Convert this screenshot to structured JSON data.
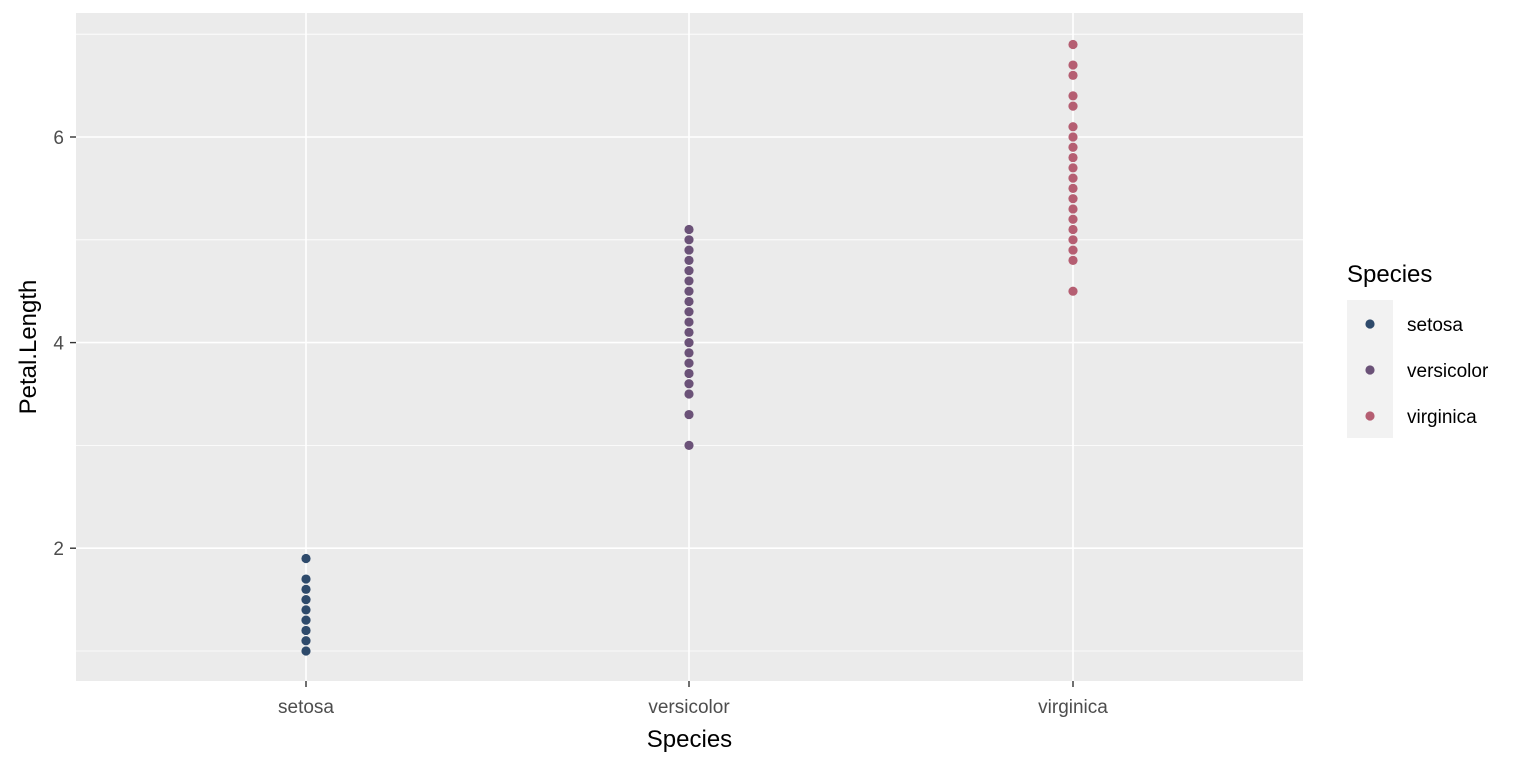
{
  "chart_data": {
    "type": "scatter",
    "title": "",
    "xlabel": "Species",
    "ylabel": "Petal.Length",
    "categories": [
      "setosa",
      "versicolor",
      "virginica"
    ],
    "ylim": [
      0.7,
      7.2
    ],
    "y_ticks": [
      2,
      4,
      6
    ],
    "y_tick_labels": [
      "2",
      "4",
      "6"
    ],
    "grid": true,
    "background": "#ebebeb",
    "legend": {
      "title": "Species",
      "position": "right"
    },
    "series": [
      {
        "name": "setosa",
        "color": "#2e4a6b",
        "x": "setosa",
        "values": [
          1.0,
          1.1,
          1.2,
          1.3,
          1.4,
          1.5,
          1.6,
          1.7,
          1.9
        ]
      },
      {
        "name": "versicolor",
        "color": "#6b5278",
        "x": "versicolor",
        "values": [
          3.0,
          3.3,
          3.5,
          3.6,
          3.7,
          3.8,
          3.9,
          4.0,
          4.1,
          4.2,
          4.3,
          4.4,
          4.5,
          4.6,
          4.7,
          4.8,
          4.9,
          5.0,
          5.1
        ]
      },
      {
        "name": "virginica",
        "color": "#b55e72",
        "x": "virginica",
        "values": [
          4.5,
          4.8,
          4.9,
          5.0,
          5.1,
          5.2,
          5.3,
          5.4,
          5.5,
          5.6,
          5.7,
          5.8,
          5.9,
          6.0,
          6.1,
          6.3,
          6.4,
          6.6,
          6.7,
          6.9
        ]
      }
    ]
  }
}
